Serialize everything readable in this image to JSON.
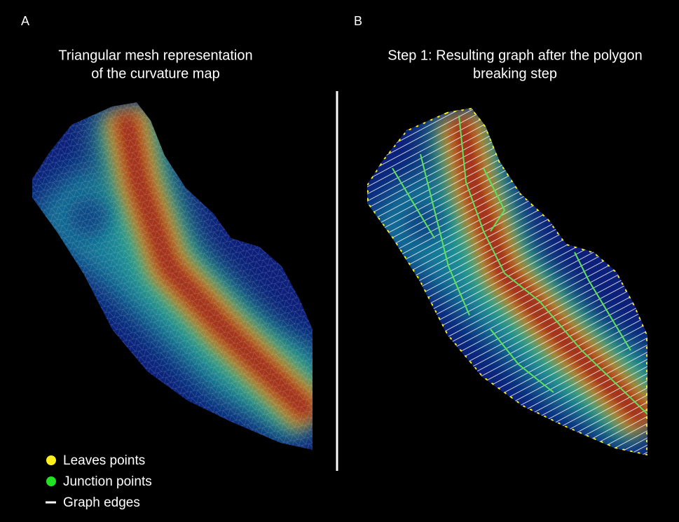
{
  "panels": [
    {
      "label": "A",
      "title": [
        "Triangular mesh representation",
        "of the curvature map"
      ]
    },
    {
      "label": "B",
      "title": [
        "Step 1: Resulting graph after the polygon",
        "breaking step"
      ]
    }
  ],
  "legend": [
    "Leaves points",
    "Junction points",
    "Graph edges"
  ]
}
